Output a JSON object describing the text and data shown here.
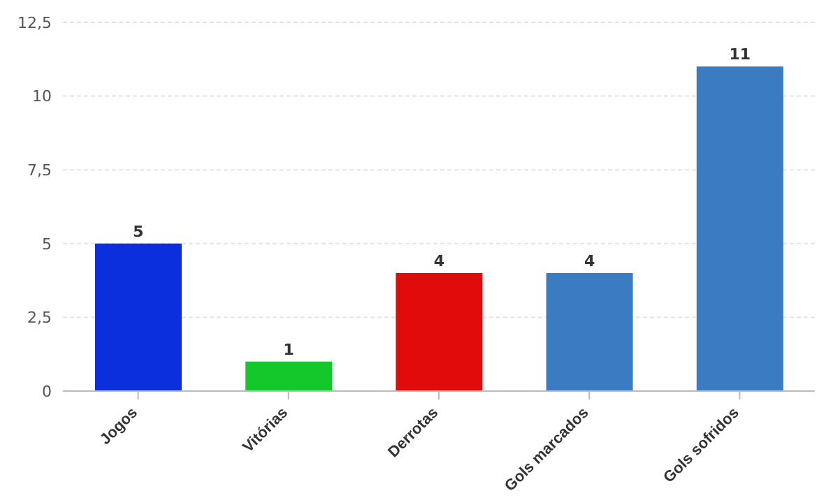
{
  "chart_data": {
    "type": "bar",
    "categories": [
      "Jogos",
      "Vitórias",
      "Derrotas",
      "Gols marcados",
      "Gols sofridos"
    ],
    "values": [
      5,
      1,
      4,
      4,
      11
    ],
    "colors": [
      "#0b2fdc",
      "#14c72b",
      "#e20b0b",
      "#3a7bc1",
      "#3a7bc1"
    ],
    "ylim": [
      0,
      12.5
    ],
    "yticks": [
      0,
      {
        "value": 2.5,
        "label": "2,5"
      },
      5,
      {
        "value": 7.5,
        "label": "7,5"
      },
      10,
      {
        "value": 12.5,
        "label": "12,5"
      }
    ],
    "grid": "y",
    "data_labels": true,
    "legend": false
  }
}
